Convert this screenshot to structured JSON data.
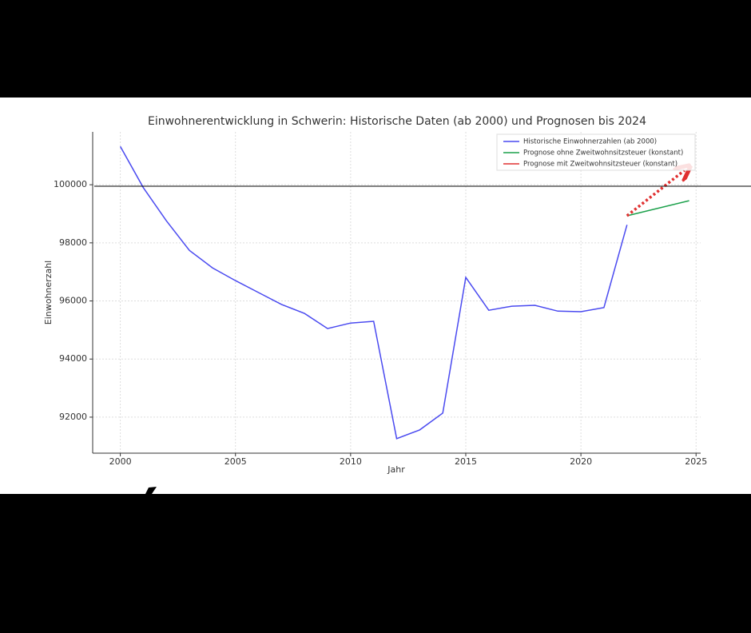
{
  "chart_data": {
    "type": "line",
    "title": "Einwohnerentwicklung in Schwerin: Historische Daten (ab 2000) und Prognosen bis 2024",
    "x_label": "Jahr",
    "y_label": "Einwohnerzahl",
    "xlim": [
      1998.8,
      2025.2
    ],
    "ylim": [
      90760,
      101820
    ],
    "xticks": [
      2000,
      2005,
      2010,
      2015,
      2020,
      2025
    ],
    "yticks": [
      92000,
      94000,
      96000,
      98000,
      100000
    ],
    "grid": true,
    "legend": "upper right",
    "series": [
      {
        "name": "Historische Einwohnerzahlen (ab 2000)",
        "color": "#4a4af0",
        "style": "solid",
        "x": [
          2000,
          2001,
          2002,
          2003,
          2004,
          2005,
          2006,
          2007,
          2008,
          2009,
          2010,
          2011,
          2012,
          2013,
          2014,
          2015,
          2016,
          2017,
          2018,
          2019,
          2020,
          2021,
          2022
        ],
        "values": [
          101320,
          99900,
          98760,
          97740,
          97140,
          96700,
          96290,
          95880,
          95570,
          95050,
          95240,
          95300,
          91260,
          91560,
          92140,
          96810,
          95680,
          95820,
          95850,
          95650,
          95630,
          95770,
          98620
        ]
      },
      {
        "name": "Prognose ohne Zweitwohnsitzsteuer (konstant)",
        "color": "#1aa04a",
        "style": "solid",
        "x": [
          2022,
          2024.7
        ],
        "values": [
          98930,
          99450
        ]
      },
      {
        "name": "Prognose mit Zweitwohnsitzsteuer (konstant)",
        "color": "#e03030",
        "style": "dotted-arrow",
        "x": [
          2022,
          2024.5
        ],
        "values": [
          98930,
          100500
        ]
      }
    ]
  }
}
